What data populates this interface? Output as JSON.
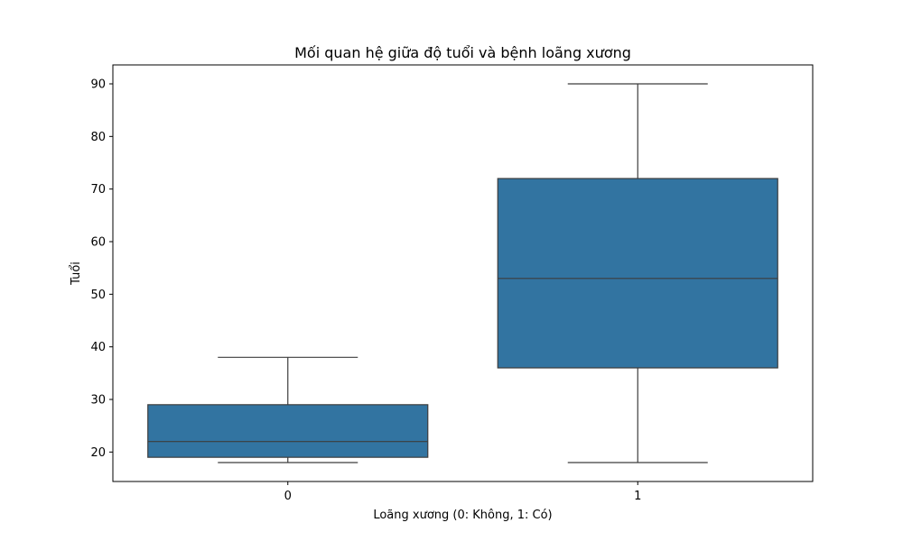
{
  "chart_data": {
    "type": "box",
    "title": "Mối quan hệ giữa độ tuổi và bệnh loãng xương",
    "xlabel": "Loãng xương (0: Không, 1: Có)",
    "ylabel": "Tuổi",
    "categories": [
      "0",
      "1"
    ],
    "boxes": [
      {
        "category": "0",
        "whisker_low": 18,
        "q1": 19,
        "median": 22,
        "q3": 29,
        "whisker_high": 38
      },
      {
        "category": "1",
        "whisker_low": 18,
        "q1": 36,
        "median": 53,
        "q3": 72,
        "whisker_high": 90
      }
    ],
    "yticks": [
      20,
      30,
      40,
      50,
      60,
      70,
      80,
      90
    ],
    "ylim": [
      14.4,
      93.6
    ],
    "grid": false,
    "colors": {
      "box_fill": "#3274a1",
      "line": "#3d3d3d"
    }
  }
}
